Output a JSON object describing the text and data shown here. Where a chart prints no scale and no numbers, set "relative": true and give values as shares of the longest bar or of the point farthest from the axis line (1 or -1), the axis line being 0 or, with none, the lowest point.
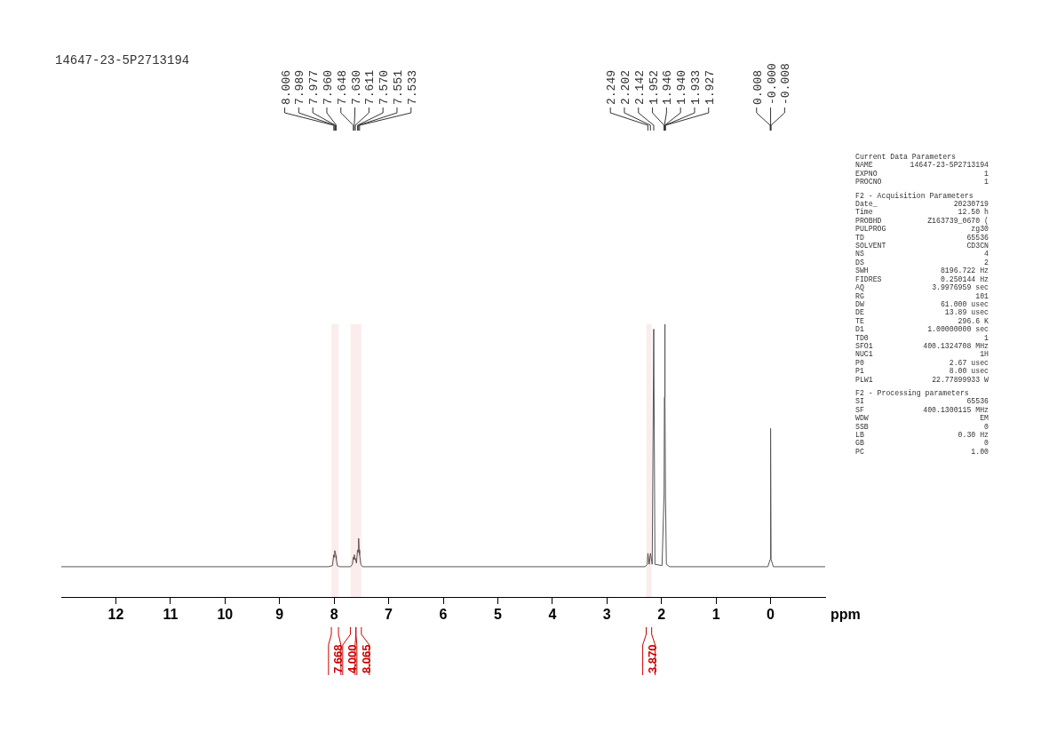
{
  "chart_data": {
    "type": "line",
    "relative": true,
    "title": "14647-23-5P2713194",
    "xlabel": "ppm",
    "xlim": [
      13,
      -1
    ],
    "xticks": [
      12,
      11,
      10,
      9,
      8,
      7,
      6,
      5,
      4,
      3,
      2,
      1,
      0
    ],
    "grid": false,
    "legend": false,
    "marker": "none",
    "line_style": "solid",
    "series": [
      {
        "color": "#555555",
        "x": [
          13,
          8.1,
          8.03,
          8.006,
          7.997,
          7.989,
          7.977,
          7.968,
          7.96,
          7.94,
          7.9,
          7.7,
          7.665,
          7.648,
          7.639,
          7.63,
          7.62,
          7.611,
          7.59,
          7.57,
          7.56,
          7.551,
          7.542,
          7.533,
          7.51,
          7.48,
          2.3,
          2.26,
          2.249,
          2.225,
          2.202,
          2.17,
          2.142,
          2.12,
          1.99,
          1.952,
          1.946,
          1.94,
          1.933,
          1.927,
          1.91,
          1.85,
          0.05,
          0.008,
          0,
          -0.008,
          -0.05,
          -1
        ],
        "values": [
          0.111,
          0.111,
          0.115,
          0.155,
          0.146,
          0.17,
          0.164,
          0.151,
          0.138,
          0.115,
          0.111,
          0.111,
          0.12,
          0.146,
          0.138,
          0.155,
          0.138,
          0.142,
          0.124,
          0.173,
          0.164,
          0.215,
          0.173,
          0.155,
          0.12,
          0.111,
          0.111,
          0.12,
          0.16,
          0.12,
          0.16,
          0.12,
          0.982,
          0.12,
          0.115,
          0.378,
          0.733,
          1,
          0.733,
          0.378,
          0.12,
          0.111,
          0.111,
          0.138,
          0.618,
          0.138,
          0.111,
          0.111
        ]
      }
    ],
    "bands": [
      {
        "axis": "x",
        "from": 8.05,
        "to": 7.92,
        "label": "7.668",
        "color": "#cc0000"
      },
      {
        "axis": "x",
        "from": 7.7,
        "to": 7.6,
        "label": "4.000",
        "color": "#cc0000"
      },
      {
        "axis": "x",
        "from": 7.6,
        "to": 7.5,
        "label": "8.065",
        "color": "#cc0000"
      },
      {
        "axis": "x",
        "from": 2.28,
        "to": 2.18,
        "label": "3.870",
        "color": "#cc0000"
      }
    ],
    "annotations": [
      {
        "text": "8.006",
        "x": 8.006
      },
      {
        "text": "7.989",
        "x": 7.989
      },
      {
        "text": "7.977",
        "x": 7.977
      },
      {
        "text": "7.960",
        "x": 7.96
      },
      {
        "text": "7.648",
        "x": 7.648
      },
      {
        "text": "7.630",
        "x": 7.63
      },
      {
        "text": "7.611",
        "x": 7.611
      },
      {
        "text": "7.570",
        "x": 7.57
      },
      {
        "text": "7.551",
        "x": 7.551
      },
      {
        "text": "7.533",
        "x": 7.533
      },
      {
        "text": "2.249",
        "x": 2.249
      },
      {
        "text": "2.202",
        "x": 2.202
      },
      {
        "text": "2.142",
        "x": 2.142
      },
      {
        "text": "1.952",
        "x": 1.952
      },
      {
        "text": "1.946",
        "x": 1.946
      },
      {
        "text": "1.940",
        "x": 1.94
      },
      {
        "text": "1.933",
        "x": 1.933
      },
      {
        "text": "1.927",
        "x": 1.927
      },
      {
        "text": "0.008",
        "x": 0.008
      },
      {
        "text": "-0.000",
        "x": 0
      },
      {
        "text": "-0.008",
        "x": -0.008
      },
      "Current Data Parameters",
      "NAME  14647-23-5P2713194",
      "EXPNO  1",
      "PROCNO  1",
      "F2 - Acquisition Parameters",
      "Date_  20230719",
      "Time  12.50 h",
      "PROBHD  Z163739_0670 (",
      "PULPROG  zg30",
      "TD  65536",
      "SOLVENT  CD3CN",
      "NS  4",
      "DS  2",
      "SWH  8196.722 Hz",
      "FIDRES  0.250144 Hz",
      "AQ  3.9976959 sec",
      "RG  101",
      "DW  61.000 usec",
      "DE  13.89 usec",
      "TE  296.6 K",
      "D1  1.00000000 sec",
      "TD0  1",
      "SFO1  400.1324708 MHz",
      "NUC1  1H",
      "P0  2.67 usec",
      "P1  8.00 usec",
      "PLW1  22.77899933 W",
      "F2 - Processing parameters",
      "SI  65536",
      "SF  400.1300115 MHz",
      "WDW  EM",
      "SSB  0",
      "LB  0.30 Hz",
      "GB  0",
      "PC  1.00"
    ]
  }
}
